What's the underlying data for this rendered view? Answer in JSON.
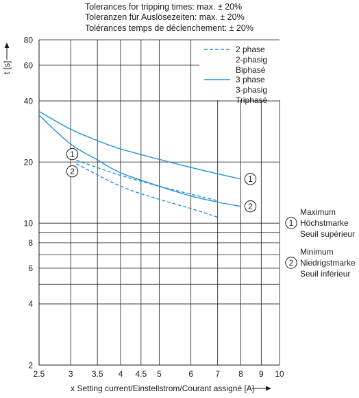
{
  "chart_data": {
    "type": "line",
    "title_lines": [
      "Tolerances for tripping times: max. ± 20%",
      "Toleranzen für Auslösezeiten: max. ± 20%",
      "Tolérances temps de déclenchement: ± 20%"
    ],
    "ylabel": "t [s]",
    "xlabel": "x Setting current/Einstellstrom/Courant assigné [A]",
    "x_scale": "log",
    "y_scale": "log",
    "xlim": [
      2.5,
      10
    ],
    "ylim": [
      2,
      80
    ],
    "x_ticks": [
      {
        "v": 2.5,
        "label": "2.5"
      },
      {
        "v": 3,
        "label": "3"
      },
      {
        "v": 3.5,
        "label": "3.5"
      },
      {
        "v": 4,
        "label": "4"
      },
      {
        "v": 4.5,
        "label": "4.5"
      },
      {
        "v": 5,
        "label": "5"
      },
      {
        "v": 6,
        "label": "6"
      },
      {
        "v": 7,
        "label": "7"
      },
      {
        "v": 8,
        "label": "8"
      },
      {
        "v": 9,
        "label": "9"
      },
      {
        "v": 10,
        "label": "10"
      }
    ],
    "y_ticks": [
      {
        "v": 2,
        "label": "2"
      },
      {
        "v": 4,
        "label": "4"
      },
      {
        "v": 6,
        "label": "6"
      },
      {
        "v": 8,
        "label": "8"
      },
      {
        "v": 10,
        "label": "10"
      },
      {
        "v": 20,
        "label": "20"
      },
      {
        "v": 40,
        "label": "40"
      },
      {
        "v": 60,
        "label": "60"
      },
      {
        "v": 80,
        "label": "80"
      }
    ],
    "y_gridlines": [
      2,
      4,
      5,
      6,
      7,
      8,
      9,
      10,
      20,
      40,
      60,
      80
    ],
    "x_gridlines": [
      2.5,
      3,
      3.5,
      4,
      4.5,
      5,
      6,
      7,
      8,
      9,
      10
    ],
    "grid": true,
    "legend": {
      "placement": "top-right",
      "entries": [
        {
          "style": "dashed",
          "lines": [
            "2 phase",
            "2-phasig",
            "Biphasé"
          ]
        },
        {
          "style": "solid",
          "lines": [
            "3 phase",
            "3-phasig",
            "Triphasé"
          ]
        }
      ]
    },
    "series": [
      {
        "style": "solid",
        "marker": "1",
        "points": [
          [
            2.5,
            35.5
          ],
          [
            3,
            29
          ],
          [
            3.5,
            25.5
          ],
          [
            4,
            23.2
          ],
          [
            5,
            20.6
          ],
          [
            6,
            18.8
          ],
          [
            7,
            17.5
          ],
          [
            8,
            16.5
          ]
        ]
      },
      {
        "style": "solid",
        "marker": "2",
        "points": [
          [
            2.5,
            34
          ],
          [
            3,
            24.5
          ],
          [
            3.5,
            20.5
          ],
          [
            4,
            17.7
          ],
          [
            5,
            15.2
          ],
          [
            6,
            13.6
          ],
          [
            7,
            12.7
          ],
          [
            8,
            12.1
          ]
        ]
      },
      {
        "style": "dashed",
        "marker": "1",
        "points": [
          [
            3.1,
            20.4
          ],
          [
            4,
            17.2
          ],
          [
            5,
            15.2
          ],
          [
            6,
            13.9
          ],
          [
            7,
            12.9
          ]
        ]
      },
      {
        "style": "dashed",
        "marker": "2",
        "points": [
          [
            3.1,
            19.6
          ],
          [
            4,
            15.2
          ],
          [
            5,
            13.1
          ],
          [
            6,
            11.8
          ],
          [
            7,
            10.7
          ]
        ]
      }
    ],
    "annotations": [
      {
        "marker": "1",
        "lines": [
          "Maximum",
          "Höchstmarke",
          "Seuil supérieur"
        ]
      },
      {
        "marker": "2",
        "lines": [
          "Minimum",
          "Niedrigstmarke",
          "Seuil inférieur"
        ]
      }
    ],
    "series_color": "#1f8fdc"
  }
}
